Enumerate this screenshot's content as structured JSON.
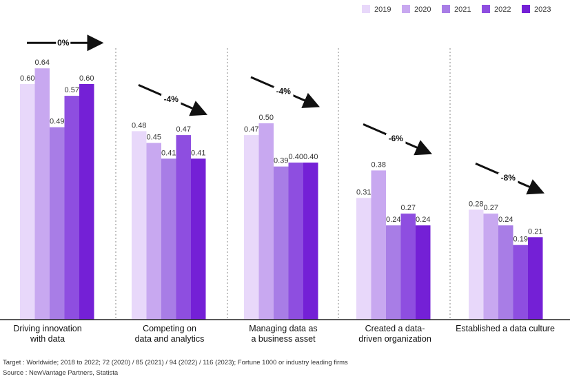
{
  "chart_data": {
    "type": "bar",
    "categories": [
      [
        "Driving innovation",
        "with data"
      ],
      [
        "Competing on",
        "data and analytics"
      ],
      [
        "Managing data as",
        "a business asset"
      ],
      [
        "Created a data-",
        "driven organization"
      ],
      [
        "Established a data culture"
      ]
    ],
    "series": [
      {
        "name": "2019",
        "color": "#e8d8fa",
        "values": [
          0.6,
          0.48,
          0.47,
          0.31,
          0.28
        ]
      },
      {
        "name": "2020",
        "color": "#c8a8f0",
        "values": [
          0.64,
          0.45,
          0.5,
          0.38,
          0.27
        ]
      },
      {
        "name": "2021",
        "color": "#a87de6",
        "values": [
          0.49,
          0.41,
          0.39,
          0.24,
          0.24
        ]
      },
      {
        "name": "2022",
        "color": "#8e4ee0",
        "values": [
          0.57,
          0.47,
          0.4,
          0.27,
          0.19
        ]
      },
      {
        "name": "2023",
        "color": "#7420d6",
        "values": [
          0.6,
          0.41,
          0.4,
          0.24,
          0.21
        ]
      }
    ],
    "value_labels": [
      [
        "0.60",
        "0.64",
        "0.49",
        "0.57",
        "0.60"
      ],
      [
        "0.48",
        "0.45",
        "0.41",
        "0.47",
        "0.41"
      ],
      [
        "0.47",
        "0.50",
        "0.39",
        "0.40",
        "0.40"
      ],
      [
        "0.31",
        "0.38",
        "0.24",
        "0.27",
        "0.24"
      ],
      [
        "0.28",
        "0.27",
        "0.24",
        "0.19",
        "0.21"
      ]
    ],
    "trend_labels": [
      "0%",
      "-4%",
      "-4%",
      "-6%",
      "-8%"
    ],
    "ylim": [
      0,
      0.7
    ],
    "grid": false,
    "legend_position": "top-right",
    "separator_color": "#9a9a9a"
  },
  "footnotes": {
    "target": "Target : Worldwide; 2018 to 2022; 72 (2020) / 85 (2021) / 94 (2022) / 116 (2023); Fortune 1000 or industry leading firms",
    "source": "Source : NewVantage Partners, Statista"
  }
}
